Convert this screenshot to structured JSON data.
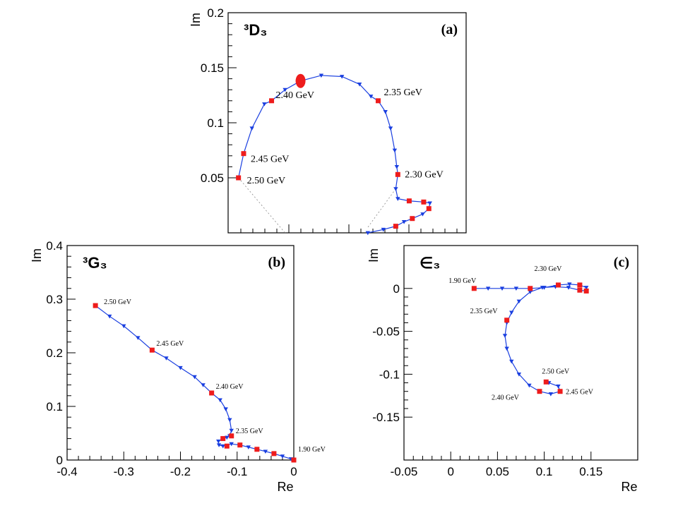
{
  "colors": {
    "curve": "#1a3fe0",
    "marker_blue": "#1a3fe0",
    "marker_red": "#ee1c1c",
    "axis": "#000000",
    "guide": "#888888"
  },
  "chart_data": [
    {
      "id": "a",
      "type": "scatter",
      "panel_tag": "(a)",
      "title": "³D₃",
      "xlabel": "",
      "ylabel": "Im",
      "xlim": [
        -0.1,
        0.13
      ],
      "ylim": [
        0.0,
        0.2
      ],
      "yticks": [
        0.05,
        0.1,
        0.15,
        0.2
      ],
      "ytick_labels": [
        "0.05",
        "0.1",
        "0.15",
        "0.2"
      ],
      "xticks": [],
      "xtick_labels": [],
      "grid": false,
      "curve": [
        [
          -0.09,
          0.05
        ],
        [
          -0.085,
          0.072
        ],
        [
          -0.077,
          0.095
        ],
        [
          -0.065,
          0.117
        ],
        [
          -0.058,
          0.12
        ],
        [
          -0.045,
          0.13
        ],
        [
          -0.03,
          0.138
        ],
        [
          -0.01,
          0.143
        ],
        [
          0.01,
          0.142
        ],
        [
          0.027,
          0.135
        ],
        [
          0.038,
          0.124
        ],
        [
          0.045,
          0.12
        ],
        [
          0.052,
          0.11
        ],
        [
          0.057,
          0.095
        ],
        [
          0.061,
          0.075
        ],
        [
          0.063,
          0.06
        ],
        [
          0.064,
          0.053
        ],
        [
          0.062,
          0.04
        ],
        [
          0.064,
          0.031
        ],
        [
          0.075,
          0.029
        ],
        [
          0.089,
          0.028
        ],
        [
          0.095,
          0.027
        ],
        [
          0.094,
          0.022
        ],
        [
          0.088,
          0.017
        ],
        [
          0.078,
          0.013
        ],
        [
          0.07,
          0.01
        ],
        [
          0.062,
          0.006
        ],
        [
          0.05,
          0.003
        ],
        [
          0.035,
          0.0
        ]
      ],
      "labeled_points": [
        {
          "label": "2.50 GeV",
          "x": -0.09,
          "y": 0.05
        },
        {
          "label": "2.45 GeV",
          "x": -0.085,
          "y": 0.072
        },
        {
          "label": "2.40 GeV",
          "x": -0.058,
          "y": 0.12
        },
        {
          "label": "2.35 GeV",
          "x": 0.045,
          "y": 0.12
        },
        {
          "label": "2.30 GeV",
          "x": 0.064,
          "y": 0.053
        }
      ],
      "big_point": {
        "x": -0.03,
        "y": 0.138
      }
    },
    {
      "id": "b",
      "type": "scatter",
      "panel_tag": "(b)",
      "title": "³G₃",
      "xlabel": "Re",
      "ylabel": "Im",
      "xlim": [
        -0.4,
        0.0
      ],
      "ylim": [
        0.0,
        0.4
      ],
      "xticks": [
        -0.4,
        -0.3,
        -0.2,
        -0.1,
        0
      ],
      "xtick_labels": [
        "-0.4",
        "-0.3",
        "-0.2",
        "-0.1",
        "0"
      ],
      "yticks": [
        0,
        0.1,
        0.2,
        0.3,
        0.4
      ],
      "ytick_labels": [
        "0",
        "0.1",
        "0.2",
        "0.3",
        "0.4"
      ],
      "grid": false,
      "curve": [
        [
          -0.35,
          0.288
        ],
        [
          -0.325,
          0.268
        ],
        [
          -0.3,
          0.25
        ],
        [
          -0.275,
          0.228
        ],
        [
          -0.25,
          0.205
        ],
        [
          -0.225,
          0.19
        ],
        [
          -0.2,
          0.172
        ],
        [
          -0.175,
          0.155
        ],
        [
          -0.16,
          0.14
        ],
        [
          -0.145,
          0.125
        ],
        [
          -0.13,
          0.112
        ],
        [
          -0.12,
          0.095
        ],
        [
          -0.113,
          0.075
        ],
        [
          -0.11,
          0.055
        ],
        [
          -0.113,
          0.045
        ],
        [
          -0.118,
          0.042
        ],
        [
          -0.125,
          0.04
        ],
        [
          -0.133,
          0.035
        ],
        [
          -0.132,
          0.028
        ],
        [
          -0.125,
          0.026
        ],
        [
          -0.11,
          0.03
        ],
        [
          -0.095,
          0.028
        ],
        [
          -0.08,
          0.024
        ],
        [
          -0.065,
          0.02
        ],
        [
          -0.05,
          0.016
        ],
        [
          -0.035,
          0.012
        ],
        [
          -0.02,
          0.007
        ],
        [
          -0.005,
          0.002
        ],
        [
          0.0,
          0.0
        ]
      ],
      "labeled_points": [
        {
          "label": "2.50 GeV",
          "x": -0.35,
          "y": 0.288
        },
        {
          "label": "2.45 GeV",
          "x": -0.25,
          "y": 0.205
        },
        {
          "label": "2.40 GeV",
          "x": -0.145,
          "y": 0.125
        },
        {
          "label": "2.35 GeV",
          "x": -0.11,
          "y": 0.045
        },
        {
          "label": "1.90 GeV",
          "x": 0.0,
          "y": 0.0
        }
      ]
    },
    {
      "id": "c",
      "type": "scatter",
      "panel_tag": "(c)",
      "title": "∈₃",
      "xlabel": "Re",
      "ylabel": "Im",
      "xlim": [
        -0.05,
        0.2
      ],
      "ylim": [
        -0.2,
        0.05
      ],
      "xticks": [
        -0.05,
        0,
        0.05,
        0.1,
        0.15
      ],
      "xtick_labels": [
        "-0.05",
        "0",
        "0.05",
        "0.1",
        "0.15"
      ],
      "yticks": [
        -0.15,
        -0.1,
        -0.05,
        0
      ],
      "ytick_labels": [
        "-0.15",
        "-0.1",
        "-0.05",
        "0"
      ],
      "grid": false,
      "curve": [
        [
          0.025,
          0.0
        ],
        [
          0.04,
          0.0
        ],
        [
          0.055,
          0.0
        ],
        [
          0.07,
          0.0
        ],
        [
          0.085,
          0.0
        ],
        [
          0.1,
          0.001
        ],
        [
          0.115,
          0.004
        ],
        [
          0.127,
          0.005
        ],
        [
          0.138,
          0.004
        ],
        [
          0.145,
          0.001
        ],
        [
          0.145,
          -0.003
        ],
        [
          0.138,
          -0.002
        ],
        [
          0.126,
          0.001
        ],
        [
          0.112,
          0.002
        ],
        [
          0.098,
          0.001
        ],
        [
          0.085,
          -0.004
        ],
        [
          0.073,
          -0.015
        ],
        [
          0.065,
          -0.028
        ],
        [
          0.06,
          -0.04
        ],
        [
          0.058,
          -0.055
        ],
        [
          0.06,
          -0.07
        ],
        [
          0.065,
          -0.085
        ],
        [
          0.073,
          -0.1
        ],
        [
          0.084,
          -0.113
        ],
        [
          0.095,
          -0.12
        ],
        [
          0.107,
          -0.123
        ],
        [
          0.117,
          -0.12
        ],
        [
          0.115,
          -0.114
        ],
        [
          0.105,
          -0.11
        ]
      ],
      "labeled_points": [
        {
          "label": "1.90 GeV",
          "x": 0.025,
          "y": 0.0
        },
        {
          "label": "2.30 GeV",
          "x": 0.115,
          "y": 0.004
        },
        {
          "label": "2.35 GeV",
          "x": 0.06,
          "y": -0.037
        },
        {
          "label": "2.40 GeV",
          "x": 0.095,
          "y": -0.12
        },
        {
          "label": "2.45 GeV",
          "x": 0.117,
          "y": -0.12
        },
        {
          "label": "2.50 GeV",
          "x": 0.102,
          "y": -0.109
        }
      ]
    }
  ]
}
